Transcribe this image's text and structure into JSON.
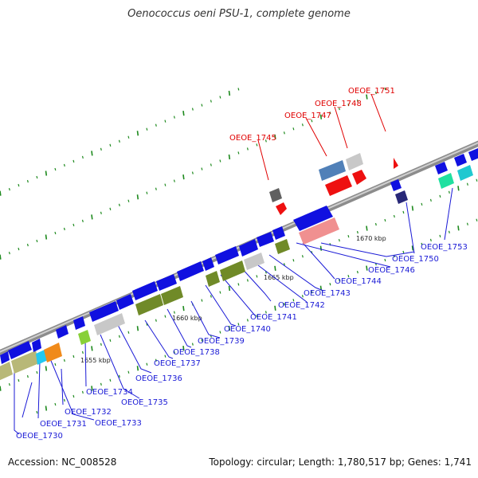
{
  "title": "Oenococcus oeni PSU-1, complete genome",
  "footer": {
    "accession": "Accession: NC_008528",
    "topology": "Topology: circular; Length: 1,780,517 bp; Genes: 1,741"
  },
  "scale_labels": [
    "1655 kbp",
    "1660 kbp",
    "1665 kbp",
    "1670 kbp"
  ],
  "gene_labels_blue": [
    "OEOE_1730",
    "OEOE_1731",
    "OEOE_1732",
    "OEOE_1733",
    "OEOE_1734",
    "OEOE_1735",
    "OEOE_1736",
    "OEOE_1737",
    "OEOE_1738",
    "OEOE_1739",
    "OEOE_1740",
    "OEOE_1741",
    "OEOE_1742",
    "OEOE_1743",
    "OEOE_1744",
    "OEOE_1746",
    "OEOE_1750",
    "OEOE_1753"
  ],
  "gene_labels_red": [
    "OEOE_1745",
    "OEOE_1747",
    "OEOE_1748",
    "OEOE_1751"
  ],
  "colors": {
    "blue_label": "#1a1ad6",
    "red_label": "#e00000",
    "gene_blue": "#1010e0",
    "tick_green": "#1e8a1e",
    "backbone": "#8c8c8c"
  }
}
